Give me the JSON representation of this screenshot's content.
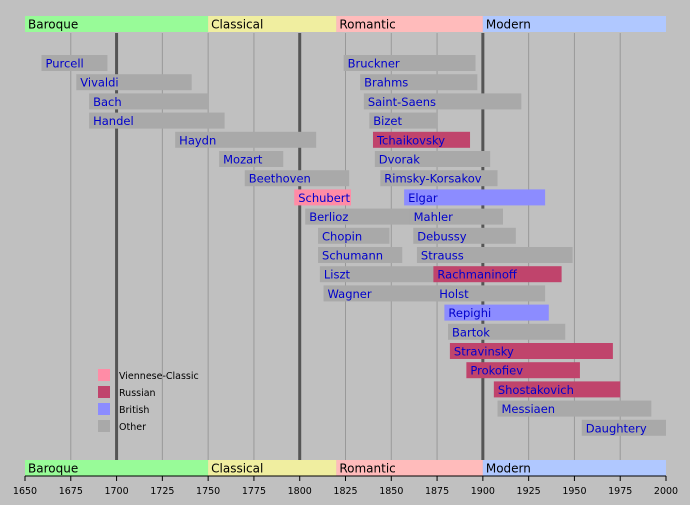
{
  "chart_data": {
    "type": "bar",
    "xlim": [
      1650,
      2000
    ],
    "x_ticks": [
      1650,
      1675,
      1700,
      1725,
      1750,
      1775,
      1800,
      1825,
      1850,
      1875,
      1900,
      1925,
      1950,
      1975,
      2000
    ],
    "major_gridlines": [
      1700,
      1800,
      1900
    ],
    "colors": {
      "Viennese-Classic": "#ff8ca6",
      "Russian": "#c0446c",
      "British": "#8c8cff",
      "Other": "#a9a9a9",
      "era_Baroque": "#98fb98",
      "era_Classical": "#f0eea0",
      "era_Romantic": "#ffbbbb",
      "era_Modern": "#b0c8ff",
      "label_text": "#0000cc",
      "background": "#c0c0c0"
    },
    "eras": [
      {
        "name": "Baroque",
        "start": 1650,
        "end": 1750
      },
      {
        "name": "Classical",
        "start": 1750,
        "end": 1820
      },
      {
        "name": "Romantic",
        "start": 1820,
        "end": 1900
      },
      {
        "name": "Modern",
        "start": 1900,
        "end": 2000
      }
    ],
    "composers": [
      {
        "name": "Purcell",
        "start": 1659,
        "end": 1695,
        "category": "Other",
        "row": 0
      },
      {
        "name": "Vivaldi",
        "start": 1678,
        "end": 1741,
        "category": "Other",
        "row": 1
      },
      {
        "name": "Bach",
        "start": 1685,
        "end": 1750,
        "category": "Other",
        "row": 2
      },
      {
        "name": "Handel",
        "start": 1685,
        "end": 1759,
        "category": "Other",
        "row": 3
      },
      {
        "name": "Haydn",
        "start": 1732,
        "end": 1809,
        "category": "Other",
        "row": 4
      },
      {
        "name": "Mozart",
        "start": 1756,
        "end": 1791,
        "category": "Other",
        "row": 5
      },
      {
        "name": "Beethoven",
        "start": 1770,
        "end": 1827,
        "category": "Other",
        "row": 6
      },
      {
        "name": "Schubert",
        "start": 1797,
        "end": 1828,
        "category": "Viennese-Classic",
        "row": 7
      },
      {
        "name": "Berlioz",
        "start": 1803,
        "end": 1869,
        "category": "Other",
        "row": 8
      },
      {
        "name": "Chopin",
        "start": 1810,
        "end": 1849,
        "category": "Other",
        "row": 9
      },
      {
        "name": "Schumann",
        "start": 1810,
        "end": 1856,
        "category": "Other",
        "row": 10
      },
      {
        "name": "Liszt",
        "start": 1811,
        "end": 1886,
        "category": "Other",
        "row": 11
      },
      {
        "name": "Wagner",
        "start": 1813,
        "end": 1883,
        "category": "Other",
        "row": 12
      },
      {
        "name": "Bruckner",
        "start": 1824,
        "end": 1896,
        "category": "Other",
        "row": 0
      },
      {
        "name": "Brahms",
        "start": 1833,
        "end": 1897,
        "category": "Other",
        "row": 1
      },
      {
        "name": "Saint-Saens",
        "start": 1835,
        "end": 1921,
        "category": "Other",
        "row": 2
      },
      {
        "name": "Bizet",
        "start": 1838,
        "end": 1875,
        "category": "Other",
        "row": 3
      },
      {
        "name": "Tchaikovsky",
        "start": 1840,
        "end": 1893,
        "category": "Russian",
        "row": 4
      },
      {
        "name": "Dvorak",
        "start": 1841,
        "end": 1904,
        "category": "Other",
        "row": 5
      },
      {
        "name": "Rimsky-Korsakov",
        "start": 1844,
        "end": 1908,
        "category": "Other",
        "row": 6
      },
      {
        "name": "Elgar",
        "start": 1857,
        "end": 1934,
        "category": "British",
        "row": 7
      },
      {
        "name": "Mahler",
        "start": 1860,
        "end": 1911,
        "category": "Other",
        "row": 8
      },
      {
        "name": "Debussy",
        "start": 1862,
        "end": 1918,
        "category": "Other",
        "row": 9
      },
      {
        "name": "Strauss",
        "start": 1864,
        "end": 1949,
        "category": "Other",
        "row": 10
      },
      {
        "name": "Rachmaninoff",
        "start": 1873,
        "end": 1943,
        "category": "Russian",
        "row": 11
      },
      {
        "name": "Holst",
        "start": 1874,
        "end": 1934,
        "category": "Other",
        "row": 12
      },
      {
        "name": "Repighi",
        "start": 1879,
        "end": 1936,
        "category": "British",
        "row": 13
      },
      {
        "name": "Bartok",
        "start": 1881,
        "end": 1945,
        "category": "Other",
        "row": 14
      },
      {
        "name": "Stravinsky",
        "start": 1882,
        "end": 1971,
        "category": "Russian",
        "row": 15
      },
      {
        "name": "Prokofiev",
        "start": 1891,
        "end": 1953,
        "category": "Russian",
        "row": 16
      },
      {
        "name": "Shostakovich",
        "start": 1906,
        "end": 1975,
        "category": "Russian",
        "row": 17
      },
      {
        "name": "Messiaen",
        "start": 1908,
        "end": 1992,
        "category": "Other",
        "row": 18
      },
      {
        "name": "Daughtery",
        "start": 1954,
        "end": 2000,
        "category": "Other",
        "row": 19
      }
    ],
    "legend": [
      "Viennese-Classic",
      "Russian",
      "British",
      "Other"
    ]
  }
}
